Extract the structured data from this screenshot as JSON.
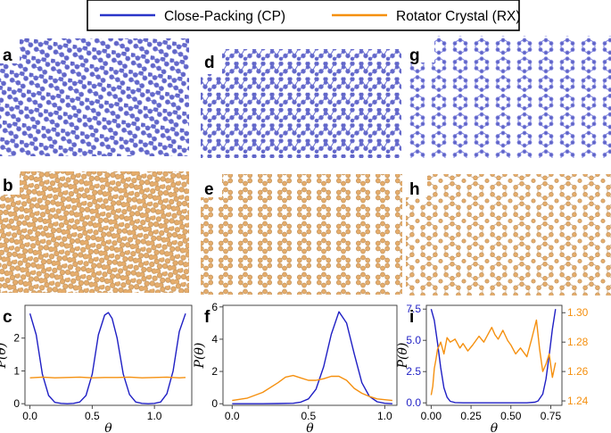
{
  "legend": {
    "items": [
      {
        "label": "Close-Packing (CP)",
        "color": "#2a36c9"
      },
      {
        "label": "Rotator Crystal (RX)",
        "color": "#f5900f"
      }
    ]
  },
  "panels": {
    "labels": [
      "a",
      "d",
      "g",
      "b",
      "e",
      "h",
      "c",
      "f",
      "i"
    ],
    "blue_color": "#6f6fcf",
    "orange_color": "#e0a868"
  },
  "axis_labels": {
    "x": "θ",
    "y": "P(θ)"
  },
  "chart_data": [
    {
      "panel": "c",
      "type": "line",
      "xlabel": "θ",
      "ylabel": "P(θ)",
      "xlim": [
        -0.04,
        1.3
      ],
      "ylim": [
        -0.05,
        3.0
      ],
      "xticks": [
        "0.0",
        "0.5",
        "1.0"
      ],
      "yticks": [
        "0",
        "1",
        "2"
      ],
      "series": [
        {
          "name": "Close-Packing (CP)",
          "color": "#1f1fc4",
          "x": [
            0.0,
            0.05,
            0.1,
            0.15,
            0.2,
            0.25,
            0.3,
            0.35,
            0.4,
            0.45,
            0.5,
            0.55,
            0.6,
            0.63,
            0.66,
            0.7,
            0.75,
            0.8,
            0.85,
            0.9,
            0.95,
            1.0,
            1.05,
            1.1,
            1.15,
            1.2,
            1.25
          ],
          "y": [
            2.75,
            2.1,
            0.9,
            0.25,
            0.04,
            0.01,
            0.0,
            0.01,
            0.05,
            0.25,
            0.9,
            2.1,
            2.7,
            2.78,
            2.6,
            2.0,
            0.9,
            0.28,
            0.05,
            0.01,
            0.0,
            0.01,
            0.05,
            0.3,
            1.0,
            2.2,
            2.75
          ]
        },
        {
          "name": "Rotator Crystal (RX)",
          "color": "#f5900f",
          "x": [
            0.0,
            0.1,
            0.2,
            0.3,
            0.4,
            0.5,
            0.6,
            0.7,
            0.8,
            0.9,
            1.0,
            1.1,
            1.2,
            1.25
          ],
          "y": [
            0.79,
            0.81,
            0.79,
            0.8,
            0.81,
            0.79,
            0.8,
            0.8,
            0.81,
            0.79,
            0.8,
            0.81,
            0.79,
            0.8
          ]
        }
      ]
    },
    {
      "panel": "f",
      "type": "line",
      "xlabel": "θ",
      "ylabel": "P(θ)",
      "xlim": [
        -0.06,
        1.08
      ],
      "ylim": [
        -0.1,
        6.1
      ],
      "xticks": [
        "0.0",
        "0.5",
        "1.0"
      ],
      "yticks": [
        "0",
        "2",
        "4",
        "6"
      ],
      "series": [
        {
          "name": "Close-Packing (CP)",
          "color": "#1f1fc4",
          "x": [
            0.0,
            0.1,
            0.2,
            0.3,
            0.4,
            0.45,
            0.5,
            0.55,
            0.6,
            0.65,
            0.7,
            0.75,
            0.8,
            0.85,
            0.9,
            0.95,
            1.0,
            1.05
          ],
          "y": [
            0.0,
            0.0,
            0.0,
            0.01,
            0.03,
            0.1,
            0.3,
            0.9,
            2.3,
            4.3,
            5.7,
            5.0,
            3.1,
            1.3,
            0.45,
            0.12,
            0.03,
            0.0
          ]
        },
        {
          "name": "Rotator Crystal (RX)",
          "color": "#f5900f",
          "x": [
            0.0,
            0.1,
            0.2,
            0.3,
            0.35,
            0.4,
            0.45,
            0.5,
            0.55,
            0.6,
            0.65,
            0.7,
            0.75,
            0.8,
            0.85,
            0.9,
            0.95,
            1.0,
            1.05
          ],
          "y": [
            0.2,
            0.35,
            0.7,
            1.3,
            1.65,
            1.75,
            1.6,
            1.45,
            1.45,
            1.55,
            1.7,
            1.7,
            1.45,
            0.95,
            0.65,
            0.45,
            0.3,
            0.25,
            0.2
          ]
        }
      ]
    },
    {
      "panel": "i",
      "type": "line",
      "xlabel": "θ",
      "ylabel": "P(θ)",
      "xlim": [
        -0.03,
        0.82
      ],
      "ylim": [
        -0.2,
        7.8
      ],
      "ylim_right": [
        1.237,
        1.305
      ],
      "xticks": [
        "0.00",
        "0.25",
        "0.50",
        "0.75"
      ],
      "yticks": [
        "0.0",
        "2.5",
        "5.0",
        "7.5"
      ],
      "yticks_right": [
        "1.24",
        "1.26",
        "1.28",
        "1.30"
      ],
      "series": [
        {
          "name": "Close-Packing (CP)",
          "color": "#1f1fc4",
          "axis": "left",
          "x": [
            0.0,
            0.02,
            0.04,
            0.06,
            0.08,
            0.1,
            0.12,
            0.15,
            0.2,
            0.3,
            0.4,
            0.5,
            0.6,
            0.65,
            0.67,
            0.7,
            0.72,
            0.74,
            0.76,
            0.78
          ],
          "y": [
            7.5,
            6.6,
            4.8,
            2.8,
            1.2,
            0.45,
            0.12,
            0.02,
            0.0,
            0.0,
            0.0,
            0.0,
            0.0,
            0.05,
            0.15,
            0.7,
            1.9,
            3.8,
            5.9,
            7.5
          ]
        },
        {
          "name": "Rotator Crystal (RX)",
          "color": "#f5900f",
          "axis": "right",
          "x": [
            0.0,
            0.01,
            0.02,
            0.03,
            0.04,
            0.06,
            0.08,
            0.1,
            0.12,
            0.15,
            0.18,
            0.2,
            0.23,
            0.26,
            0.3,
            0.33,
            0.36,
            0.38,
            0.4,
            0.42,
            0.45,
            0.48,
            0.5,
            0.53,
            0.56,
            0.6,
            0.63,
            0.66,
            0.68,
            0.7,
            0.72,
            0.74,
            0.76,
            0.78
          ],
          "y": [
            1.244,
            1.25,
            1.262,
            1.268,
            1.275,
            1.28,
            1.272,
            1.283,
            1.28,
            1.282,
            1.276,
            1.279,
            1.274,
            1.278,
            1.284,
            1.28,
            1.286,
            1.29,
            1.285,
            1.282,
            1.288,
            1.281,
            1.278,
            1.272,
            1.276,
            1.27,
            1.282,
            1.295,
            1.275,
            1.26,
            1.265,
            1.272,
            1.256,
            1.266
          ]
        }
      ]
    }
  ]
}
